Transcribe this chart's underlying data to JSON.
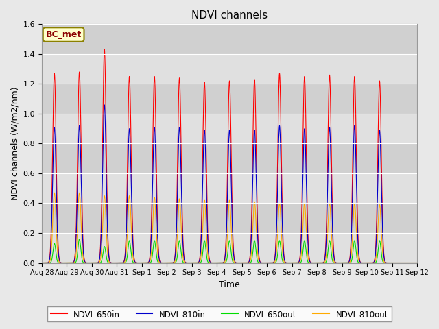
{
  "title": "NDVI channels",
  "xlabel": "Time",
  "ylabel": "NDVI channels (W/m2/nm)",
  "ylim": [
    0,
    1.6
  ],
  "fig_bg_color": "#e8e8e8",
  "plot_bg_color": "#dcdcdc",
  "colors": {
    "NDVI_650in": "#ff0000",
    "NDVI_810in": "#0000cc",
    "NDVI_650out": "#00dd00",
    "NDVI_810out": "#ffaa00"
  },
  "peak_heights": {
    "NDVI_650in": [
      1.27,
      1.28,
      1.43,
      1.25,
      1.25,
      1.24,
      1.21,
      1.22,
      1.23,
      1.27,
      1.25,
      1.26,
      1.25,
      1.22
    ],
    "NDVI_810in": [
      0.91,
      0.92,
      1.06,
      0.9,
      0.91,
      0.91,
      0.89,
      0.89,
      0.89,
      0.92,
      0.9,
      0.91,
      0.92,
      0.89
    ],
    "NDVI_650out": [
      0.13,
      0.16,
      0.11,
      0.15,
      0.15,
      0.15,
      0.15,
      0.15,
      0.15,
      0.15,
      0.15,
      0.15,
      0.15,
      0.15
    ],
    "NDVI_810out": [
      0.47,
      0.47,
      0.45,
      0.45,
      0.44,
      0.43,
      0.42,
      0.42,
      0.41,
      0.4,
      0.4,
      0.4,
      0.4,
      0.39
    ]
  },
  "peak_widths": {
    "NDVI_650in": 0.07,
    "NDVI_810in": 0.07,
    "NDVI_650out": 0.055,
    "NDVI_810out": 0.065
  },
  "num_peaks": 14,
  "total_days": 15,
  "tick_labels": [
    "Aug 28",
    "Aug 29",
    "Aug 30",
    "Aug 31",
    "Sep 1",
    "Sep 2",
    "Sep 3",
    "Sep 4",
    "Sep 5",
    "Sep 6",
    "Sep 7",
    "Sep 8",
    "Sep 9",
    "Sep 10",
    "Sep 11",
    "Sep 12"
  ],
  "annotation_text": "BC_met",
  "annotation_color": "#8B0000",
  "annotation_bg": "#ffffcc",
  "annotation_edge": "#8B8000",
  "legend_entries": [
    "NDVI_650in",
    "NDVI_810in",
    "NDVI_650out",
    "NDVI_810out"
  ]
}
